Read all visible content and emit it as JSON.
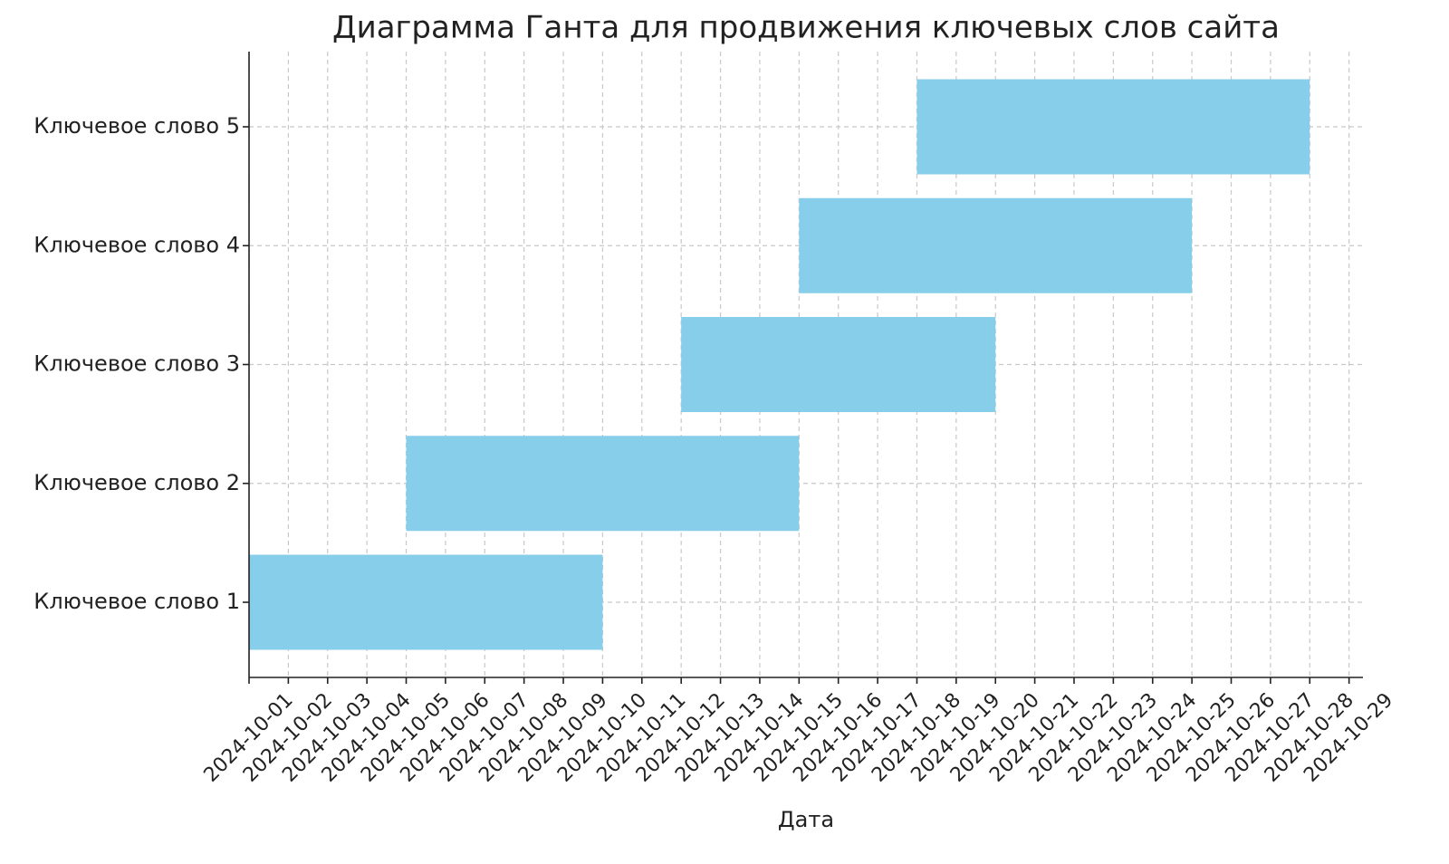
{
  "chart_data": {
    "type": "gantt",
    "title": "Диаграмма Ганта для продвижения ключевых слов сайта",
    "x_label": "Дата",
    "categories": [
      "Ключевое слово 1",
      "Ключевое слово 2",
      "Ключевое слово 3",
      "Ключевое слово 4",
      "Ключевое слово 5"
    ],
    "tasks": [
      {
        "start": "2024-10-01",
        "end": "2024-10-10"
      },
      {
        "start": "2024-10-05",
        "end": "2024-10-15"
      },
      {
        "start": "2024-10-12",
        "end": "2024-10-20"
      },
      {
        "start": "2024-10-15",
        "end": "2024-10-25"
      },
      {
        "start": "2024-10-18",
        "end": "2024-10-28"
      }
    ],
    "color": "#87ceeb",
    "xlim": [
      "2024-10-01",
      "2024-10-29T08:30"
    ],
    "xticks": [
      "2024-10-01",
      "2024-10-02",
      "2024-10-03",
      "2024-10-04",
      "2024-10-05",
      "2024-10-06",
      "2024-10-07",
      "2024-10-08",
      "2024-10-09",
      "2024-10-10",
      "2024-10-11",
      "2024-10-12",
      "2024-10-13",
      "2024-10-14",
      "2024-10-15",
      "2024-10-16",
      "2024-10-17",
      "2024-10-18",
      "2024-10-19",
      "2024-10-20",
      "2024-10-21",
      "2024-10-22",
      "2024-10-23",
      "2024-10-24",
      "2024-10-25",
      "2024-10-26",
      "2024-10-27",
      "2024-10-28",
      "2024-10-29"
    ],
    "grid": true
  }
}
